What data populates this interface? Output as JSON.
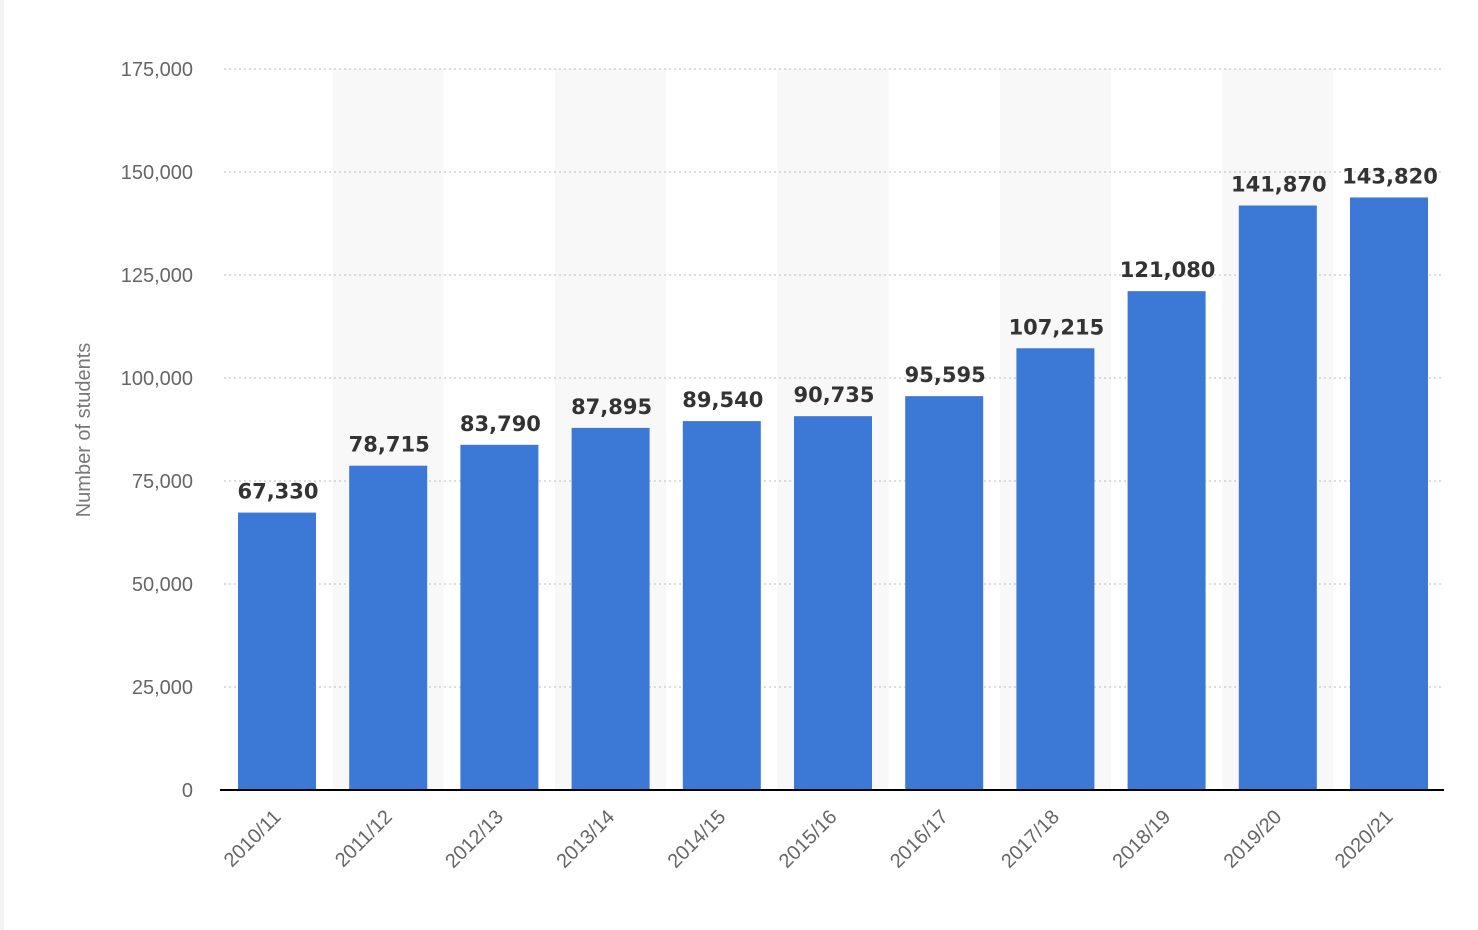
{
  "chart_data": {
    "type": "bar",
    "title": "",
    "xlabel": "",
    "ylabel": "Number of students",
    "categories": [
      "2010/11",
      "2011/12",
      "2012/13",
      "2013/14",
      "2014/15",
      "2015/16",
      "2016/17",
      "2017/18",
      "2018/19",
      "2019/20",
      "2020/21"
    ],
    "values": [
      67330,
      78715,
      83790,
      87895,
      89540,
      90735,
      95595,
      107215,
      121080,
      141870,
      143820
    ],
    "value_labels": [
      "67,330",
      "78,715",
      "83,790",
      "87,895",
      "89,540",
      "90,735",
      "95,595",
      "107,215",
      "121,080",
      "141,870",
      "143,820"
    ],
    "ylim": [
      0,
      175000
    ],
    "yticks": [
      0,
      25000,
      50000,
      75000,
      100000,
      125000,
      150000,
      175000
    ],
    "ytick_labels": [
      "0",
      "25,000",
      "50,000",
      "75,000",
      "100,000",
      "125,000",
      "150,000",
      "175,000"
    ],
    "grid": true,
    "legend": "none",
    "colors": {
      "bar": "#3c78d6",
      "band": "#f8f8f8",
      "grid": "#c8c8c8",
      "axis": "#000000"
    }
  }
}
